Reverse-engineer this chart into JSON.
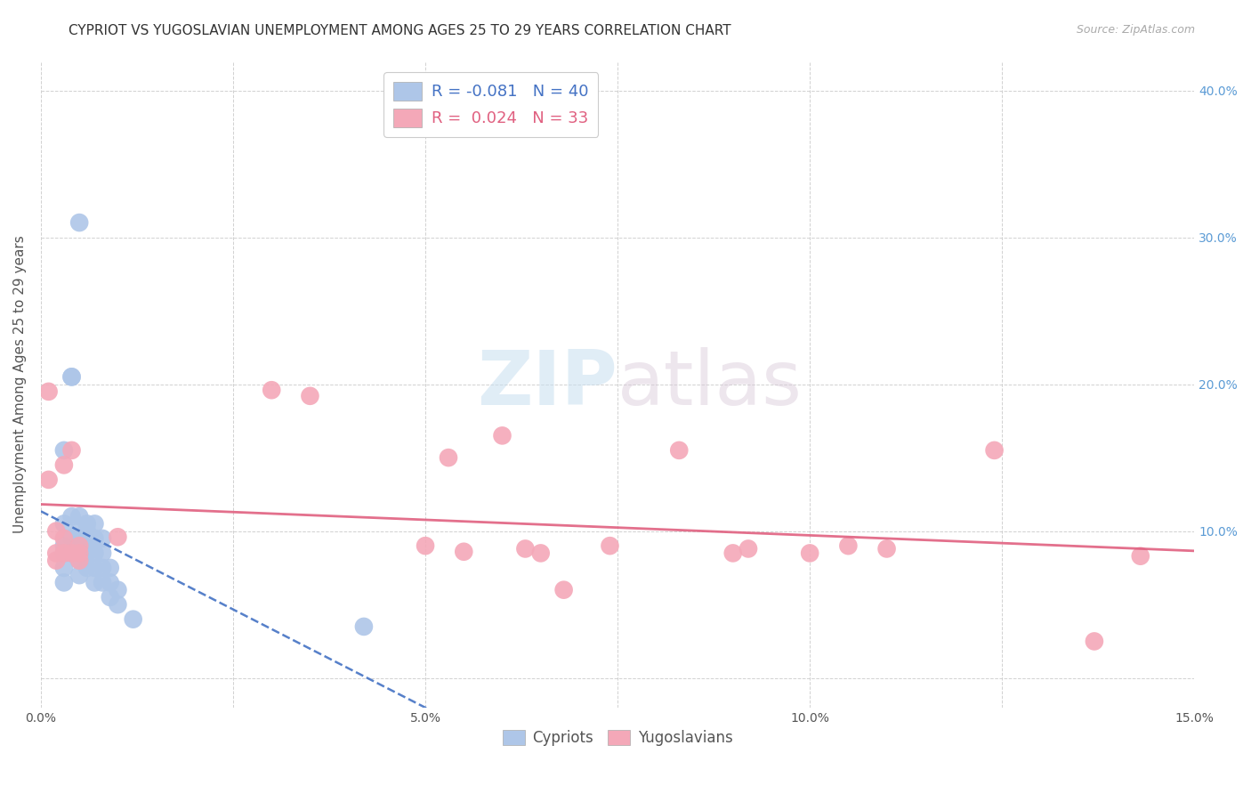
{
  "title": "CYPRIOT VS YUGOSLAVIAN UNEMPLOYMENT AMONG AGES 25 TO 29 YEARS CORRELATION CHART",
  "source": "Source: ZipAtlas.com",
  "ylabel": "Unemployment Among Ages 25 to 29 years",
  "xlim": [
    0.0,
    0.15
  ],
  "ylim": [
    -0.02,
    0.42
  ],
  "xticks": [
    0.0,
    0.025,
    0.05,
    0.075,
    0.1,
    0.125,
    0.15
  ],
  "xticklabels": [
    "0.0%",
    "",
    "5.0%",
    "",
    "10.0%",
    "",
    "15.0%"
  ],
  "yticks_right": [
    0.0,
    0.1,
    0.2,
    0.3,
    0.4
  ],
  "yticklabels_right": [
    "",
    "10.0%",
    "20.0%",
    "30.0%",
    "40.0%"
  ],
  "cypriot_x": [
    0.005,
    0.004,
    0.004,
    0.003,
    0.003,
    0.003,
    0.003,
    0.003,
    0.003,
    0.004,
    0.004,
    0.004,
    0.005,
    0.005,
    0.005,
    0.005,
    0.005,
    0.005,
    0.006,
    0.006,
    0.006,
    0.006,
    0.006,
    0.006,
    0.007,
    0.007,
    0.007,
    0.007,
    0.007,
    0.008,
    0.008,
    0.008,
    0.008,
    0.009,
    0.009,
    0.009,
    0.01,
    0.01,
    0.012,
    0.042
  ],
  "cypriot_y": [
    0.31,
    0.205,
    0.205,
    0.155,
    0.105,
    0.09,
    0.085,
    0.075,
    0.065,
    0.11,
    0.095,
    0.085,
    0.11,
    0.1,
    0.095,
    0.085,
    0.08,
    0.07,
    0.105,
    0.1,
    0.095,
    0.09,
    0.085,
    0.075,
    0.105,
    0.095,
    0.085,
    0.075,
    0.065,
    0.095,
    0.085,
    0.075,
    0.065,
    0.075,
    0.065,
    0.055,
    0.06,
    0.05,
    0.04,
    0.035
  ],
  "yugoslav_x": [
    0.001,
    0.001,
    0.002,
    0.002,
    0.002,
    0.003,
    0.003,
    0.003,
    0.004,
    0.004,
    0.005,
    0.005,
    0.005,
    0.01,
    0.03,
    0.035,
    0.05,
    0.053,
    0.055,
    0.06,
    0.063,
    0.065,
    0.068,
    0.074,
    0.083,
    0.09,
    0.092,
    0.1,
    0.105,
    0.11,
    0.124,
    0.137,
    0.143
  ],
  "yugoslav_y": [
    0.195,
    0.135,
    0.1,
    0.085,
    0.08,
    0.145,
    0.095,
    0.085,
    0.155,
    0.085,
    0.09,
    0.085,
    0.08,
    0.096,
    0.196,
    0.192,
    0.09,
    0.15,
    0.086,
    0.165,
    0.088,
    0.085,
    0.06,
    0.09,
    0.155,
    0.085,
    0.088,
    0.085,
    0.09,
    0.088,
    0.155,
    0.025,
    0.083
  ],
  "cypriot_color": "#aec6e8",
  "yugoslav_color": "#f4a8b8",
  "cypriot_line_color": "#4472c4",
  "yugoslav_line_color": "#e06080",
  "cypriot_R": -0.081,
  "cypriot_N": 40,
  "yugoslav_R": 0.024,
  "yugoslav_N": 33,
  "background_color": "#ffffff",
  "grid_color": "#cccccc",
  "watermark_zip": "ZIP",
  "watermark_atlas": "atlas",
  "title_fontsize": 11,
  "axis_label_fontsize": 11,
  "tick_fontsize": 10,
  "legend_fontsize": 13
}
